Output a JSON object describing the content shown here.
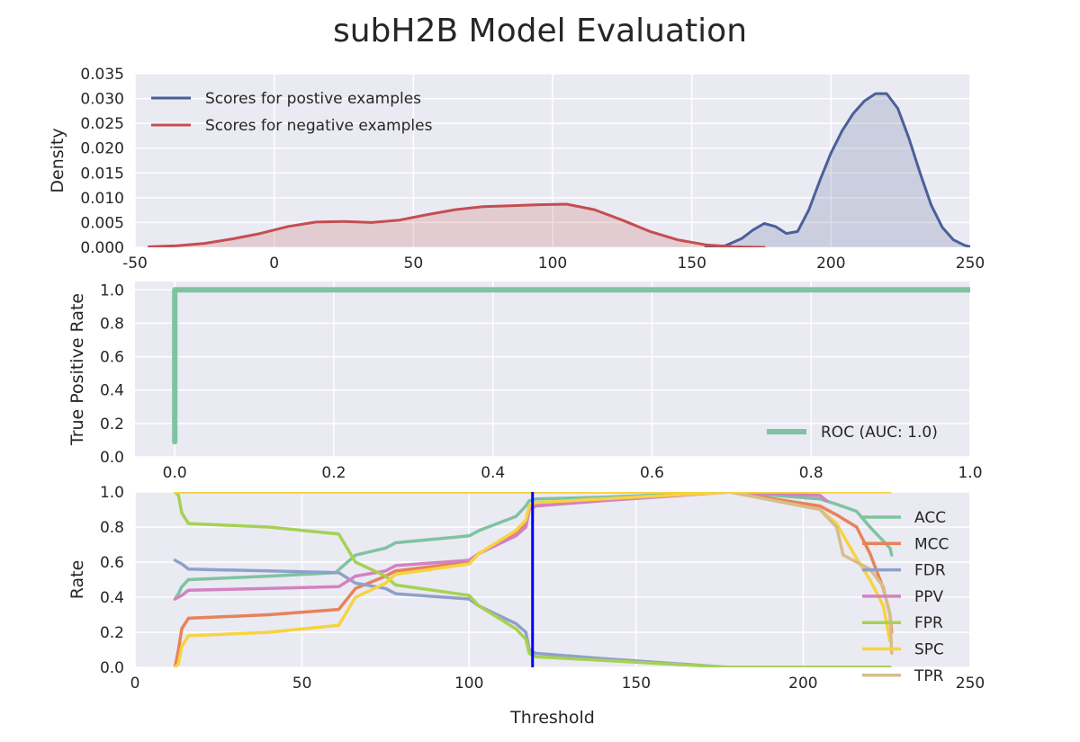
{
  "title": "subH2B Model Evaluation",
  "colors": {
    "panel_bg": "#EAEAF2",
    "grid": "#ffffff",
    "positive": "#4C5F98",
    "negative": "#C44E52",
    "roc": "#7EC3A2",
    "threshold_line": "#0000FF"
  },
  "chart_data": [
    {
      "type": "area",
      "xlabel": "",
      "ylabel": "Density",
      "xlim": [
        -50,
        250
      ],
      "ylim": [
        0,
        0.035
      ],
      "xticks": [
        -50,
        0,
        50,
        100,
        150,
        200,
        250
      ],
      "yticks": [
        0.0,
        0.005,
        0.01,
        0.015,
        0.02,
        0.025,
        0.03,
        0.035
      ],
      "ytick_labels": [
        "0.000",
        "0.005",
        "0.010",
        "0.015",
        "0.020",
        "0.025",
        "0.030",
        "0.035"
      ],
      "grid": true,
      "legend_position": "top-left",
      "series": [
        {
          "name": "Scores for postive examples",
          "color": "#4C5F98",
          "x": [
            155,
            162,
            168,
            172,
            176,
            180,
            184,
            188,
            192,
            196,
            200,
            204,
            208,
            212,
            216,
            220,
            224,
            228,
            232,
            236,
            240,
            244,
            248,
            250
          ],
          "y": [
            0.0,
            0.0003,
            0.0018,
            0.0035,
            0.0048,
            0.0042,
            0.0028,
            0.0032,
            0.0075,
            0.0135,
            0.019,
            0.0235,
            0.027,
            0.0295,
            0.031,
            0.031,
            0.028,
            0.022,
            0.015,
            0.0085,
            0.004,
            0.0015,
            0.0004,
            0.0001
          ]
        },
        {
          "name": "Scores for negative examples",
          "color": "#C44E52",
          "x": [
            -45,
            -35,
            -25,
            -15,
            -5,
            5,
            15,
            25,
            35,
            45,
            55,
            65,
            75,
            85,
            95,
            105,
            115,
            125,
            135,
            145,
            155,
            165,
            176
          ],
          "y": [
            0.0001,
            0.0003,
            0.0008,
            0.0017,
            0.0028,
            0.0042,
            0.0051,
            0.0052,
            0.005,
            0.0055,
            0.0066,
            0.0076,
            0.0082,
            0.0084,
            0.0086,
            0.0087,
            0.0076,
            0.0055,
            0.0032,
            0.0015,
            0.0005,
            0.0001,
            0.0
          ]
        }
      ]
    },
    {
      "type": "line",
      "xlabel": "",
      "ylabel": "True Positive Rate",
      "xlim": [
        -0.05,
        1.0
      ],
      "ylim": [
        0,
        1.05
      ],
      "xticks": [
        0.0,
        0.2,
        0.4,
        0.6,
        0.8,
        1.0
      ],
      "xtick_labels": [
        "0.0",
        "0.2",
        "0.4",
        "0.6",
        "0.8",
        "1.0"
      ],
      "yticks": [
        0.0,
        0.2,
        0.4,
        0.6,
        0.8,
        1.0
      ],
      "ytick_labels": [
        "0.0",
        "0.2",
        "0.4",
        "0.6",
        "0.8",
        "1.0"
      ],
      "grid": true,
      "legend_position": "bottom-right",
      "series": [
        {
          "name": "ROC (AUC: 1.0)",
          "color": "#7EC3A2",
          "x": [
            0.0,
            0.0,
            1.0
          ],
          "y": [
            0.09,
            1.0,
            1.0
          ]
        }
      ]
    },
    {
      "type": "line",
      "xlabel": "Threshold",
      "ylabel": "Rate",
      "xlim": [
        0,
        250
      ],
      "ylim": [
        0,
        1.0
      ],
      "xticks": [
        0,
        50,
        100,
        150,
        200,
        250
      ],
      "yticks": [
        0.0,
        0.2,
        0.4,
        0.6,
        0.8,
        1.0
      ],
      "ytick_labels": [
        "0.0",
        "0.2",
        "0.4",
        "0.6",
        "0.8",
        "1.0"
      ],
      "grid": true,
      "legend_position": "right",
      "vline": 119,
      "series": [
        {
          "name": "ACC",
          "color": "#7EC3A2",
          "x": [
            12,
            13,
            14,
            16,
            40,
            60,
            66,
            75,
            78,
            100,
            103,
            114,
            117,
            118,
            120,
            140,
            178,
            205,
            210,
            216,
            220,
            224,
            226,
            226.5
          ],
          "y": [
            0.39,
            0.42,
            0.46,
            0.5,
            0.52,
            0.54,
            0.64,
            0.68,
            0.71,
            0.75,
            0.78,
            0.86,
            0.92,
            0.95,
            0.96,
            0.97,
            1.0,
            0.96,
            0.93,
            0.89,
            0.8,
            0.72,
            0.68,
            0.64
          ]
        },
        {
          "name": "MCC",
          "color": "#E8825A",
          "x": [
            12,
            13,
            14,
            16,
            40,
            61,
            66,
            75,
            78,
            100,
            103,
            114,
            117,
            118,
            120,
            140,
            178,
            205,
            210,
            216,
            220,
            224,
            226,
            226.5
          ],
          "y": [
            0.0,
            0.1,
            0.22,
            0.28,
            0.3,
            0.33,
            0.45,
            0.52,
            0.55,
            0.6,
            0.65,
            0.76,
            0.83,
            0.91,
            0.93,
            0.96,
            1.0,
            0.92,
            0.87,
            0.8,
            0.65,
            0.45,
            0.3,
            0.2
          ]
        },
        {
          "name": "FDR",
          "color": "#8FA0CB",
          "x": [
            12,
            13,
            14,
            16,
            40,
            61,
            66,
            75,
            78,
            100,
            103,
            114,
            117,
            118,
            120,
            140,
            178,
            226
          ],
          "y": [
            0.61,
            0.6,
            0.59,
            0.56,
            0.55,
            0.54,
            0.48,
            0.45,
            0.42,
            0.39,
            0.35,
            0.25,
            0.2,
            0.1,
            0.08,
            0.05,
            0.0,
            0.0
          ]
        },
        {
          "name": "PPV",
          "color": "#D282C2",
          "x": [
            12,
            13,
            14,
            16,
            40,
            61,
            66,
            75,
            78,
            100,
            103,
            114,
            117,
            118,
            120,
            140,
            178,
            205,
            207
          ],
          "y": [
            0.39,
            0.4,
            0.41,
            0.44,
            0.45,
            0.46,
            0.52,
            0.55,
            0.58,
            0.61,
            0.65,
            0.75,
            0.8,
            0.9,
            0.92,
            0.95,
            1.0,
            0.98,
            0.95
          ]
        },
        {
          "name": "FPR",
          "color": "#A6D155",
          "x": [
            12,
            13,
            14,
            16,
            40,
            61,
            66,
            75,
            78,
            100,
            103,
            114,
            117,
            118,
            120,
            140,
            178,
            226
          ],
          "y": [
            1.0,
            0.98,
            0.88,
            0.82,
            0.8,
            0.76,
            0.6,
            0.52,
            0.47,
            0.41,
            0.35,
            0.22,
            0.16,
            0.08,
            0.06,
            0.04,
            0.0,
            0.0
          ]
        },
        {
          "name": "SPC",
          "color": "#F7D340",
          "x": [
            12,
            13,
            14,
            16,
            40,
            61,
            66,
            75,
            78,
            100,
            103,
            114,
            117,
            118,
            120,
            140,
            178,
            205,
            210,
            216,
            220,
            224,
            226
          ],
          "y": [
            0.0,
            0.02,
            0.12,
            0.18,
            0.2,
            0.24,
            0.4,
            0.48,
            0.53,
            0.59,
            0.65,
            0.78,
            0.84,
            0.92,
            0.94,
            0.96,
            1.0,
            0.9,
            0.82,
            0.62,
            0.5,
            0.35,
            0.15
          ]
        },
        {
          "name": "TPR",
          "color": "#D5BE8C",
          "x": [
            12,
            178,
            205,
            210,
            212,
            216,
            220,
            224,
            226,
            226.5
          ],
          "y": [
            1.0,
            1.0,
            0.9,
            0.8,
            0.64,
            0.6,
            0.56,
            0.46,
            0.3,
            0.08
          ]
        },
        {
          "name": "",
          "color": "#F7D340",
          "x": [
            12,
            226
          ],
          "y": [
            1.0,
            1.0
          ]
        }
      ]
    }
  ]
}
